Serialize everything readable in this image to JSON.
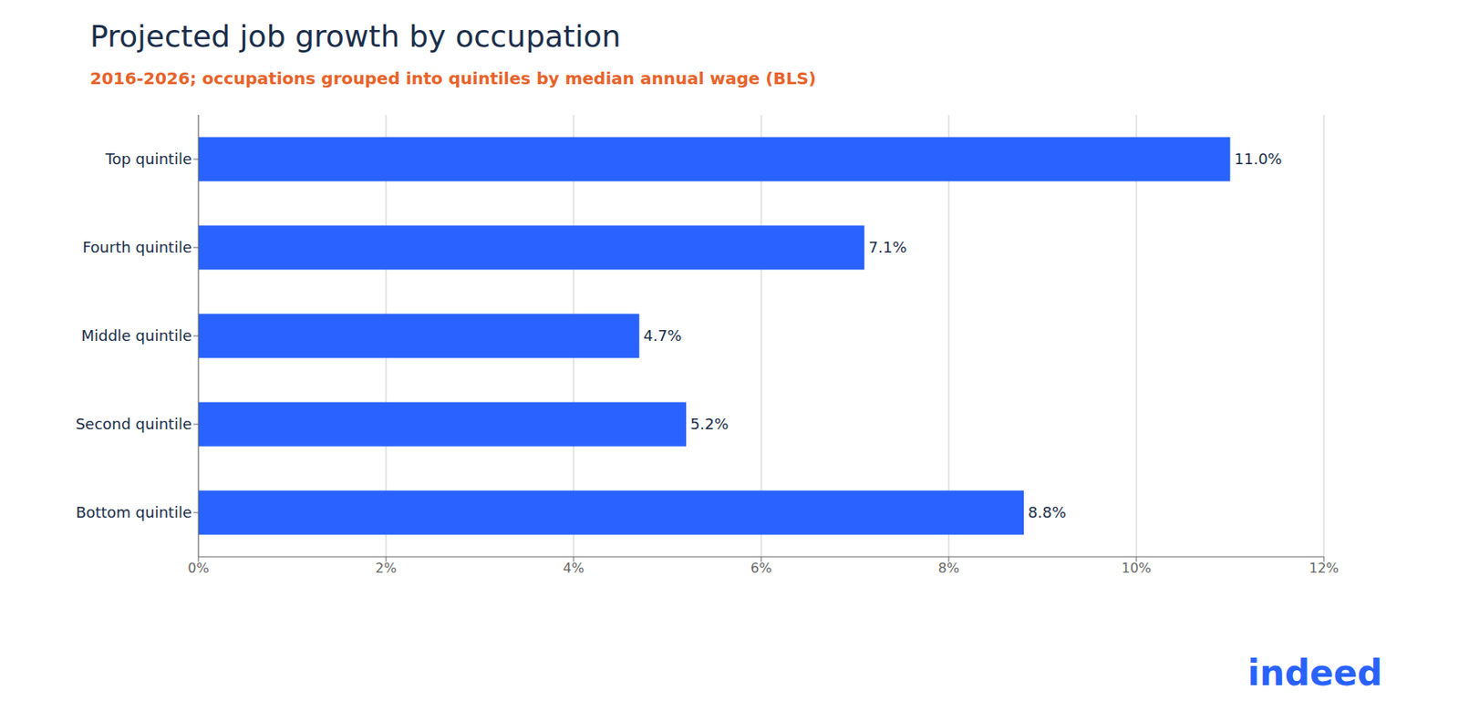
{
  "chart_data": {
    "type": "bar",
    "orientation": "horizontal",
    "title": "Projected job growth by occupation",
    "subtitle": "2016-2026; occupations grouped into quintiles by median annual wage (BLS)",
    "categories": [
      "Top quintile",
      "Fourth quintile",
      "Middle quintile",
      "Second quintile",
      "Bottom quintile"
    ],
    "values": [
      11.0,
      7.1,
      4.7,
      5.2,
      8.8
    ],
    "value_labels": [
      "11.0%",
      "7.1%",
      "4.7%",
      "5.2%",
      "8.8%"
    ],
    "data_labels": true,
    "color": "#2962FF",
    "xlim": [
      0,
      12
    ],
    "xticks": [
      {
        "value": 0,
        "label": "0%"
      },
      {
        "value": 2,
        "label": "2%"
      },
      {
        "value": 4,
        "label": "4%"
      },
      {
        "value": 6,
        "label": "6%"
      },
      {
        "value": 8,
        "label": "8%"
      },
      {
        "value": 10,
        "label": "10%"
      },
      {
        "value": 12,
        "label": "12%"
      }
    ],
    "grid": true,
    "annotations": [
      "indeed"
    ]
  }
}
